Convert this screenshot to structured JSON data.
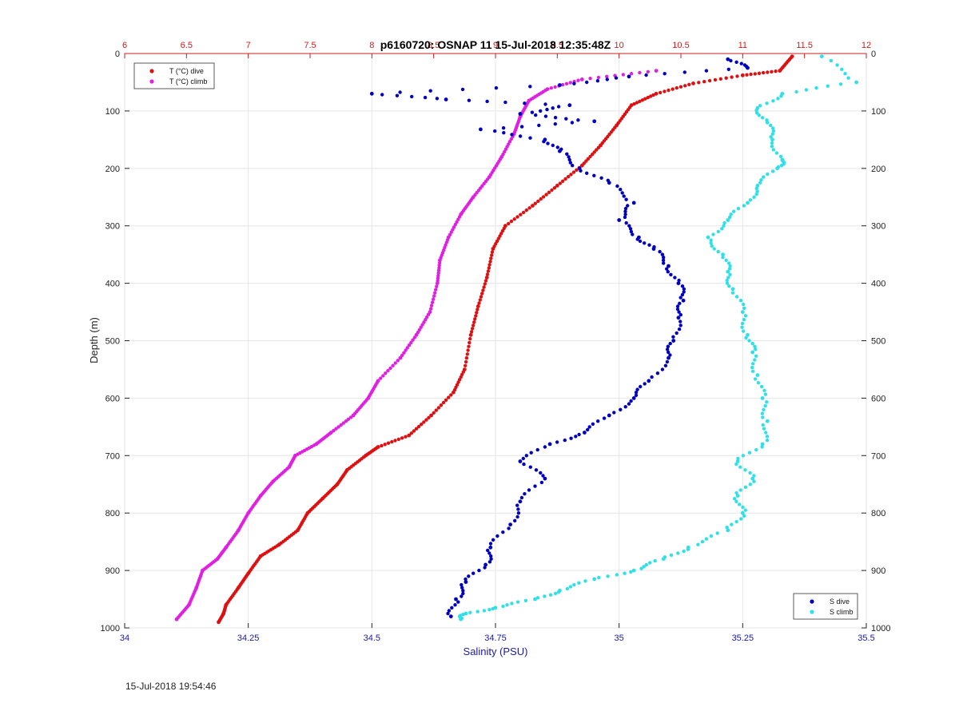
{
  "chart_data": {
    "type": "scatter",
    "title": "p6160720: OSNAP 11 15-Jul-2018 12:35:48Z",
    "ylabel": "Depth (m)",
    "xlabel_bottom": "Salinity (PSU)",
    "ylim": [
      0,
      1000
    ],
    "y_reversed": true,
    "y_ticks": [
      "0",
      "100",
      "200",
      "300",
      "400",
      "500",
      "600",
      "700",
      "800",
      "900",
      "1000"
    ],
    "x_bottom": {
      "range": [
        34,
        35.5
      ],
      "ticks": [
        "34",
        "34.25",
        "34.5",
        "34.75",
        "35",
        "35.25",
        "35.5"
      ],
      "color": "#1a1aa6"
    },
    "x_top": {
      "range": [
        6,
        12
      ],
      "ticks": [
        "6",
        "6.5",
        "7",
        "7.5",
        "8",
        "8.5",
        "9",
        "9.5",
        "10",
        "10.5",
        "11",
        "11.5",
        "12"
      ],
      "color": "#c82020"
    },
    "grid": true,
    "legend_top": {
      "placement": "top-left",
      "entries": [
        "T (°C) dive",
        "T (°C) climb"
      ]
    },
    "legend_bottom": {
      "placement": "bottom-right",
      "entries": [
        "S dive",
        "S climb"
      ]
    },
    "series": [
      {
        "name": "T (°C) dive",
        "axis": "top",
        "color": "#dd1111",
        "points": [
          [
            11.4,
            5
          ],
          [
            11.3,
            30
          ],
          [
            11.0,
            38
          ],
          [
            10.6,
            52
          ],
          [
            10.3,
            70
          ],
          [
            10.1,
            90
          ],
          [
            9.98,
            125
          ],
          [
            9.85,
            160
          ],
          [
            9.7,
            195
          ],
          [
            9.5,
            230
          ],
          [
            9.3,
            265
          ],
          [
            9.08,
            300
          ],
          [
            8.98,
            340
          ],
          [
            8.93,
            390
          ],
          [
            8.86,
            440
          ],
          [
            8.8,
            490
          ],
          [
            8.75,
            550
          ],
          [
            8.66,
            590
          ],
          [
            8.48,
            630
          ],
          [
            8.3,
            665
          ],
          [
            8.05,
            685
          ],
          [
            7.95,
            700
          ],
          [
            7.8,
            725
          ],
          [
            7.72,
            750
          ],
          [
            7.6,
            775
          ],
          [
            7.48,
            800
          ],
          [
            7.4,
            830
          ],
          [
            7.25,
            855
          ],
          [
            7.1,
            875
          ],
          [
            7.0,
            905
          ],
          [
            6.92,
            930
          ],
          [
            6.82,
            960
          ],
          [
            6.8,
            975
          ],
          [
            6.76,
            990
          ]
        ]
      },
      {
        "name": "T (°C) climb",
        "axis": "top",
        "color": "#e020e0",
        "points": [
          [
            10.3,
            30
          ],
          [
            9.7,
            45
          ],
          [
            9.42,
            62
          ],
          [
            9.27,
            82
          ],
          [
            9.2,
            110
          ],
          [
            9.15,
            140
          ],
          [
            9.05,
            180
          ],
          [
            8.95,
            215
          ],
          [
            8.82,
            250
          ],
          [
            8.72,
            280
          ],
          [
            8.62,
            320
          ],
          [
            8.55,
            360
          ],
          [
            8.53,
            400
          ],
          [
            8.47,
            450
          ],
          [
            8.36,
            490
          ],
          [
            8.23,
            530
          ],
          [
            8.05,
            570
          ],
          [
            7.97,
            600
          ],
          [
            7.85,
            630
          ],
          [
            7.67,
            660
          ],
          [
            7.55,
            680
          ],
          [
            7.38,
            700
          ],
          [
            7.33,
            720
          ],
          [
            7.2,
            745
          ],
          [
            7.1,
            770
          ],
          [
            7.0,
            800
          ],
          [
            6.92,
            830
          ],
          [
            6.82,
            860
          ],
          [
            6.75,
            880
          ],
          [
            6.63,
            900
          ],
          [
            6.58,
            930
          ],
          [
            6.52,
            960
          ],
          [
            6.42,
            985
          ]
        ]
      },
      {
        "name": "S dive",
        "axis": "bottom",
        "color": "#0000c0",
        "points": [
          [
            35.22,
            10
          ],
          [
            35.26,
            25
          ],
          [
            35.02,
            40
          ],
          [
            34.88,
            55
          ],
          [
            34.5,
            70
          ],
          [
            34.65,
            80
          ],
          [
            34.9,
            90
          ],
          [
            34.8,
            105
          ],
          [
            34.95,
            118
          ],
          [
            34.72,
            132
          ],
          [
            34.85,
            150
          ],
          [
            34.88,
            170
          ],
          [
            34.92,
            200
          ],
          [
            34.98,
            225
          ],
          [
            35.03,
            260
          ],
          [
            35.0,
            290
          ],
          [
            35.04,
            320
          ],
          [
            35.07,
            340
          ],
          [
            35.1,
            370
          ],
          [
            35.12,
            400
          ],
          [
            35.13,
            430
          ],
          [
            35.12,
            460
          ],
          [
            35.11,
            500
          ],
          [
            35.1,
            530
          ],
          [
            35.06,
            570
          ],
          [
            35.03,
            600
          ],
          [
            34.98,
            630
          ],
          [
            34.93,
            660
          ],
          [
            34.86,
            680
          ],
          [
            34.8,
            710
          ],
          [
            34.85,
            740
          ],
          [
            34.8,
            780
          ],
          [
            34.78,
            820
          ],
          [
            34.74,
            860
          ],
          [
            34.73,
            890
          ],
          [
            34.69,
            920
          ],
          [
            34.67,
            950
          ],
          [
            34.66,
            980
          ]
        ]
      },
      {
        "name": "S climb",
        "axis": "bottom",
        "color": "#30e0e8",
        "points": [
          [
            35.41,
            5
          ],
          [
            35.48,
            50
          ],
          [
            35.33,
            70
          ],
          [
            35.28,
            95
          ],
          [
            35.3,
            120
          ],
          [
            35.31,
            150
          ],
          [
            35.33,
            185
          ],
          [
            35.32,
            200
          ],
          [
            35.28,
            230
          ],
          [
            35.26,
            260
          ],
          [
            35.22,
            290
          ],
          [
            35.18,
            320
          ],
          [
            35.21,
            350
          ],
          [
            35.22,
            380
          ],
          [
            35.23,
            410
          ],
          [
            35.25,
            450
          ],
          [
            35.26,
            490
          ],
          [
            35.27,
            520
          ],
          [
            35.28,
            560
          ],
          [
            35.29,
            600
          ],
          [
            35.3,
            640
          ],
          [
            35.29,
            680
          ],
          [
            35.24,
            710
          ],
          [
            35.27,
            740
          ],
          [
            35.24,
            770
          ],
          [
            35.25,
            800
          ],
          [
            35.22,
            830
          ],
          [
            35.14,
            860
          ],
          [
            35.09,
            880
          ],
          [
            35.03,
            900
          ],
          [
            34.95,
            915
          ],
          [
            34.88,
            935
          ],
          [
            34.83,
            950
          ],
          [
            34.75,
            965
          ],
          [
            34.69,
            975
          ],
          [
            34.68,
            985
          ]
        ]
      }
    ]
  },
  "footer": {
    "timestamp": "15-Jul-2018 19:54:46"
  }
}
